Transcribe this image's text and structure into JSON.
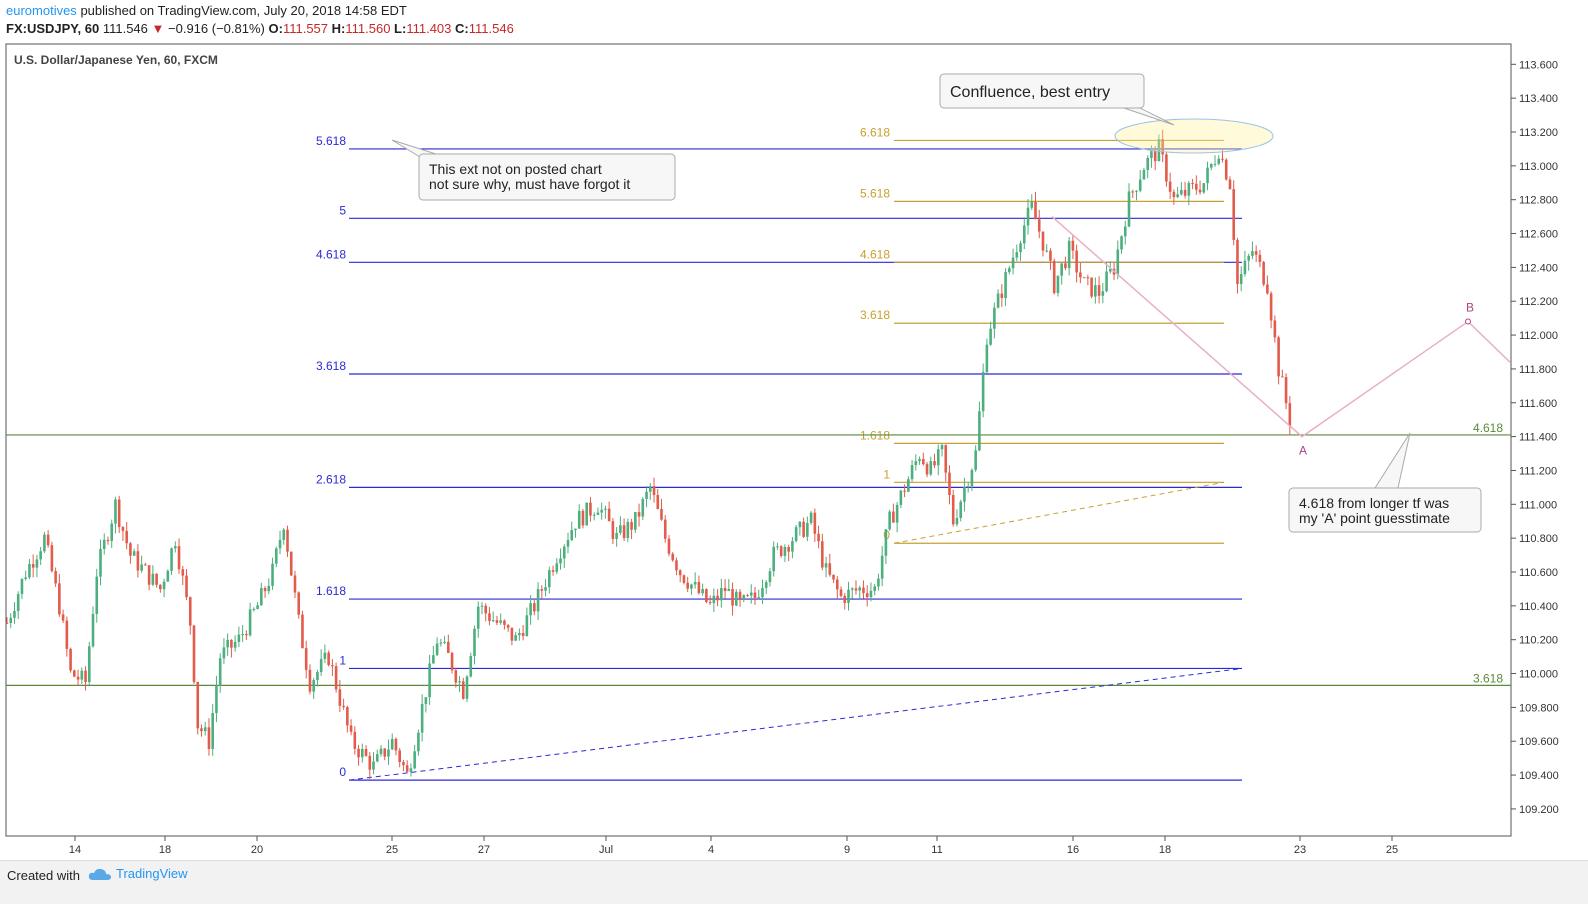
{
  "header": {
    "author": "euromotives",
    "published": "published on TradingView.com, July 20, 2018 14:58 EDT"
  },
  "quote": {
    "symbol": "FX:USDJPY, 60",
    "last": "111.546",
    "change": "−0.916 (−0.81%)",
    "o_label": "O:",
    "o": "111.557",
    "h_label": "H:",
    "h": "111.560",
    "l_label": "L:",
    "l": "111.403",
    "c_label": "C:",
    "c": "111.546"
  },
  "footer": {
    "created": "Created with",
    "brand": "TradingView"
  },
  "colors": {
    "up": "#4caf7d",
    "down": "#e25b4b",
    "fib_blue": "#2a2ad6",
    "fib_gold": "#c8a030",
    "green": "#5a8a3a",
    "pink": "#e8b0c8",
    "ab": "#b04080"
  },
  "chart_data": {
    "type": "candlestick",
    "instrument_title": "U.S. Dollar/Japanese Yen, 60, FXCM",
    "ylim": [
      109.04,
      113.72
    ],
    "y_ticks": [
      "113.600",
      "113.400",
      "113.200",
      "113.000",
      "112.800",
      "112.600",
      "112.400",
      "112.200",
      "112.000",
      "111.800",
      "111.600",
      "111.400",
      "111.200",
      "111.000",
      "110.800",
      "110.600",
      "110.400",
      "110.200",
      "110.000",
      "109.800",
      "109.600",
      "109.400",
      "109.200"
    ],
    "x_ticks": [
      "14",
      "18",
      "20",
      "25",
      "27",
      "Jul",
      "4",
      "9",
      "11",
      "16",
      "18",
      "23",
      "25"
    ],
    "price_path": [
      [
        0,
        110.3
      ],
      [
        5,
        110.6
      ],
      [
        10,
        110.8
      ],
      [
        14,
        110.4
      ],
      [
        17,
        110.0
      ],
      [
        21,
        109.95
      ],
      [
        24,
        110.6
      ],
      [
        29,
        111.0
      ],
      [
        33,
        110.7
      ],
      [
        37,
        110.6
      ],
      [
        41,
        110.5
      ],
      [
        45,
        110.8
      ],
      [
        49,
        110.3
      ],
      [
        51,
        109.7
      ],
      [
        54,
        109.6
      ],
      [
        57,
        110.1
      ],
      [
        62,
        110.2
      ],
      [
        67,
        110.4
      ],
      [
        71,
        110.6
      ],
      [
        74,
        110.9
      ],
      [
        78,
        110.3
      ],
      [
        81,
        109.95
      ],
      [
        86,
        110.1
      ],
      [
        92,
        109.6
      ],
      [
        98,
        109.45
      ],
      [
        103,
        109.6
      ],
      [
        107,
        109.4
      ],
      [
        111,
        109.8
      ],
      [
        115,
        110.2
      ],
      [
        118,
        110.1
      ],
      [
        122,
        109.9
      ],
      [
        126,
        110.4
      ],
      [
        131,
        110.3
      ],
      [
        136,
        110.2
      ],
      [
        141,
        110.4
      ],
      [
        147,
        110.7
      ],
      [
        152,
        110.9
      ],
      [
        158,
        111.0
      ],
      [
        163,
        110.8
      ],
      [
        168,
        110.9
      ],
      [
        172,
        111.1
      ],
      [
        176,
        110.8
      ],
      [
        180,
        110.6
      ],
      [
        184,
        110.5
      ],
      [
        188,
        110.4
      ],
      [
        192,
        110.5
      ],
      [
        196,
        110.4
      ],
      [
        200,
        110.45
      ],
      [
        205,
        110.7
      ],
      [
        210,
        110.8
      ],
      [
        215,
        110.9
      ],
      [
        219,
        110.6
      ],
      [
        223,
        110.45
      ],
      [
        228,
        110.5
      ],
      [
        232,
        110.5
      ],
      [
        236,
        110.9
      ],
      [
        240,
        111.1
      ],
      [
        244,
        111.3
      ],
      [
        247,
        111.2
      ],
      [
        250,
        111.3
      ],
      [
        253,
        110.9
      ],
      [
        256,
        111.1
      ],
      [
        259,
        111.3
      ],
      [
        262,
        112.0
      ],
      [
        265,
        112.2
      ],
      [
        268,
        112.4
      ],
      [
        271,
        112.6
      ],
      [
        274,
        112.75
      ],
      [
        277,
        112.55
      ],
      [
        280,
        112.3
      ],
      [
        284,
        112.5
      ],
      [
        288,
        112.3
      ],
      [
        292,
        112.25
      ],
      [
        296,
        112.4
      ],
      [
        300,
        112.8
      ],
      [
        304,
        113.0
      ],
      [
        308,
        113.1
      ],
      [
        312,
        112.8
      ],
      [
        316,
        112.85
      ],
      [
        320,
        112.9
      ],
      [
        324,
        113.1
      ],
      [
        327,
        112.9
      ],
      [
        329,
        112.3
      ],
      [
        333,
        112.5
      ],
      [
        337,
        112.3
      ],
      [
        340,
        111.8
      ],
      [
        343,
        111.5
      ]
    ],
    "fib_blue": {
      "levels": [
        {
          "label": "0",
          "price": 109.37
        },
        {
          "label": "1",
          "price": 110.03
        },
        {
          "label": "1.618",
          "price": 110.44
        },
        {
          "label": "2.618",
          "price": 111.1
        },
        {
          "label": "3.618",
          "price": 111.77
        },
        {
          "label": "4.618",
          "price": 112.43
        },
        {
          "label": "5",
          "price": 112.69
        },
        {
          "label": "5.618",
          "price": 113.1
        }
      ]
    },
    "fib_gold": {
      "levels": [
        {
          "label": "0",
          "price": 110.77
        },
        {
          "label": "1",
          "price": 111.13
        },
        {
          "label": "1.618",
          "price": 111.36
        },
        {
          "label": "3.618",
          "price": 112.07
        },
        {
          "label": "4.618",
          "price": 112.43
        },
        {
          "label": "5.618",
          "price": 112.79
        },
        {
          "label": "6.618",
          "price": 113.15
        }
      ]
    },
    "green_levels": [
      {
        "label": "4.618",
        "price": 111.41
      },
      {
        "label": "3.618",
        "price": 109.93
      }
    ],
    "projection_points": [
      {
        "label": "A",
        "price": 111.4
      },
      {
        "label": "B",
        "price": 112.08
      }
    ],
    "annotations": [
      {
        "text": [
          "Confluence, best entry"
        ]
      },
      {
        "text": [
          "This ext not on posted chart",
          "not sure why, must have forgot it"
        ]
      },
      {
        "text": [
          "4.618 from longer tf was",
          "my 'A' point guesstimate"
        ]
      }
    ]
  }
}
